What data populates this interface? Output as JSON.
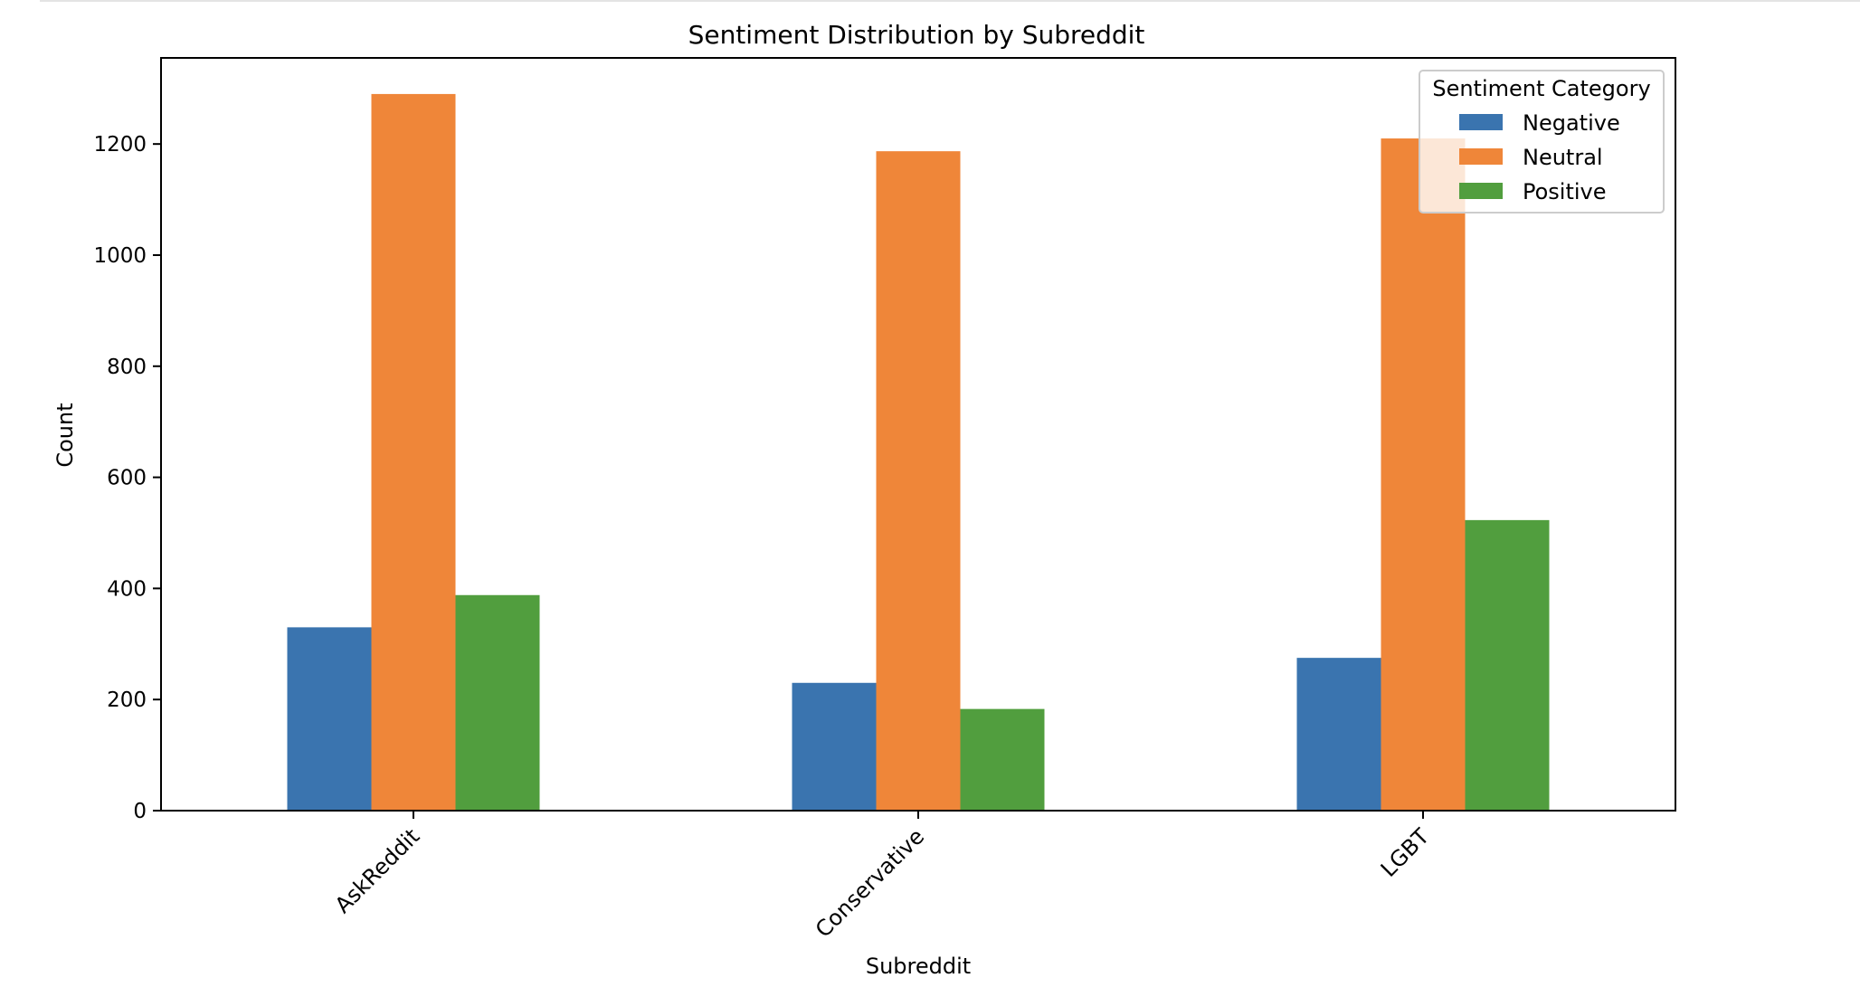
{
  "chart_data": {
    "type": "bar",
    "title": "Sentiment Distribution by Subreddit",
    "xlabel": "Subreddit",
    "ylabel": "Count",
    "categories": [
      "AskReddit",
      "Conservative",
      "LGBT"
    ],
    "series": [
      {
        "name": "Negative",
        "color": "#3a74af",
        "values": [
          330,
          230,
          275
        ]
      },
      {
        "name": "Neutral",
        "color": "#ef8639",
        "values": [
          1290,
          1187,
          1210
        ]
      },
      {
        "name": "Positive",
        "color": "#519e3e",
        "values": [
          388,
          183,
          523
        ]
      }
    ],
    "ylim": [
      0,
      1355
    ],
    "yticks": [
      0,
      200,
      400,
      600,
      800,
      1000,
      1200
    ],
    "grid": false,
    "legend": {
      "title": "Sentiment Category",
      "placement": "top-right"
    }
  }
}
